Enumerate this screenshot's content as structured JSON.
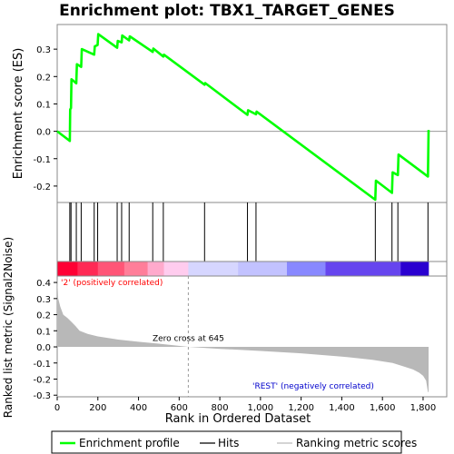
{
  "chart_data": {
    "type": "line",
    "title": "Enrichment plot: TBX1_TARGET_GENES",
    "es_panel": {
      "ylabel": "Enrichment score (ES)",
      "ylim": [
        -0.26,
        0.39
      ],
      "yticks": [
        -0.2,
        -0.1,
        0.0,
        0.1,
        0.2,
        0.3
      ],
      "ytick_labels": [
        "-0.2",
        "-0.1",
        "0.0",
        "0.1",
        "0.2",
        "0.3"
      ],
      "series_name": "Enrichment profile",
      "color": "#00ff00",
      "x": [
        0,
        62,
        64,
        68,
        70,
        94,
        97,
        118,
        121,
        182,
        185,
        199,
        202,
        295,
        298,
        317,
        320,
        354,
        357,
        470,
        473,
        522,
        525,
        725,
        728,
        936,
        939,
        978,
        981,
        1565,
        1568,
        1647,
        1650,
        1676,
        1679,
        1824,
        1827
      ],
      "y": [
        0.0,
        -0.035,
        0.08,
        0.085,
        0.19,
        0.175,
        0.245,
        0.235,
        0.3,
        0.28,
        0.31,
        0.315,
        0.355,
        0.305,
        0.33,
        0.325,
        0.35,
        0.332,
        0.347,
        0.29,
        0.302,
        0.273,
        0.28,
        0.17,
        0.176,
        0.06,
        0.077,
        0.062,
        0.072,
        -0.25,
        -0.18,
        -0.225,
        -0.15,
        -0.16,
        -0.085,
        -0.165,
        0.005
      ]
    },
    "hits": [
      62,
      68,
      94,
      118,
      182,
      199,
      295,
      317,
      354,
      470,
      522,
      725,
      936,
      978,
      1565,
      1647,
      1676,
      1824
    ],
    "metric_panel": {
      "ylabel": "Ranked list metric (Signal2Noise)",
      "ylim": [
        -0.31,
        0.44
      ],
      "yticks": [
        -0.3,
        -0.2,
        -0.1,
        0.0,
        0.1,
        0.2,
        0.3,
        0.4
      ],
      "ytick_labels": [
        "-0.3",
        "-0.2",
        "-0.1",
        "0.0",
        "0.1",
        "0.2",
        "0.3",
        "0.4"
      ],
      "profile_rank": [
        0,
        5,
        15,
        30,
        50,
        70,
        90,
        110,
        150,
        200,
        300,
        400,
        500,
        645,
        800,
        1000,
        1200,
        1400,
        1550,
        1650,
        1700,
        1750,
        1780,
        1800,
        1815,
        1824,
        1827
      ],
      "profile_value": [
        0.43,
        0.3,
        0.25,
        0.2,
        0.18,
        0.155,
        0.13,
        0.1,
        0.08,
        0.065,
        0.045,
        0.032,
        0.02,
        0.0,
        -0.012,
        -0.025,
        -0.04,
        -0.06,
        -0.08,
        -0.1,
        -0.12,
        -0.14,
        -0.16,
        -0.18,
        -0.21,
        -0.28,
        -0.28
      ],
      "fill_color": "#b8b8b8",
      "zero_cross_label": "Zero cross at 645",
      "zero_cross_rank": 645,
      "positive_label": "'2' (positively correlated)",
      "positive_color": "#ff0000",
      "negative_label": "'REST' (negatively correlated)",
      "negative_color": "#0000cc"
    },
    "color_bar": {
      "segments": [
        {
          "start": 0,
          "end": 100,
          "color": "#ff0033"
        },
        {
          "start": 100,
          "end": 200,
          "color": "#ff2a55"
        },
        {
          "start": 200,
          "end": 330,
          "color": "#ff5577"
        },
        {
          "start": 330,
          "end": 445,
          "color": "#ff7e99"
        },
        {
          "start": 445,
          "end": 525,
          "color": "#ffaacc"
        },
        {
          "start": 525,
          "end": 645,
          "color": "#ffccee"
        },
        {
          "start": 645,
          "end": 890,
          "color": "#d6d6ff"
        },
        {
          "start": 890,
          "end": 1130,
          "color": "#c2c2ff"
        },
        {
          "start": 1130,
          "end": 1320,
          "color": "#8888ff"
        },
        {
          "start": 1320,
          "end": 1690,
          "color": "#6645ee"
        },
        {
          "start": 1690,
          "end": 1827,
          "color": "#2a00d0"
        }
      ]
    },
    "xlabel": "Rank in Ordered Dataset",
    "xlim": [
      0,
      1827
    ],
    "xticks": [
      0,
      200,
      400,
      600,
      800,
      1000,
      1200,
      1400,
      1600,
      1800
    ],
    "xtick_labels": [
      "0",
      "200",
      "400",
      "600",
      "800",
      "1,000",
      "1,200",
      "1,400",
      "1,600",
      "1,800"
    ],
    "legend": {
      "placement": "bottom",
      "entries": [
        {
          "label": "Enrichment profile",
          "color": "#00ff00"
        },
        {
          "label": "Hits",
          "color": "#000000"
        },
        {
          "label": "Ranking metric scores",
          "color": "#bbbbbb"
        }
      ]
    }
  }
}
